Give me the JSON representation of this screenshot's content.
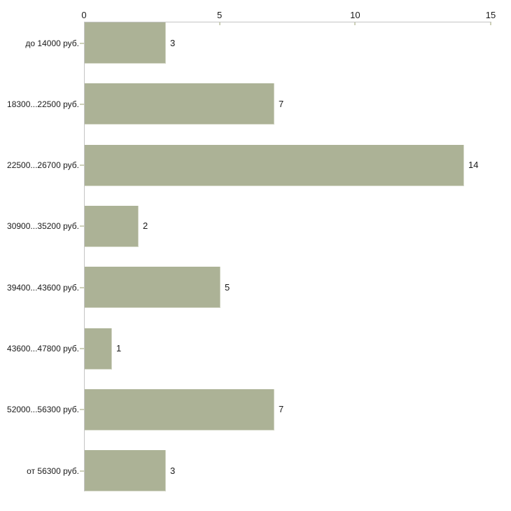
{
  "chart_data": {
    "type": "bar",
    "orientation": "horizontal",
    "categories": [
      "до 14000 руб.",
      "18300...22500 руб.",
      "22500...26700 руб.",
      "30900...35200 руб.",
      "39400...43600 руб.",
      "43600...47800 руб.",
      "52000...56300 руб.",
      "от 56300 руб."
    ],
    "values": [
      3,
      7,
      14,
      2,
      5,
      1,
      7,
      3
    ],
    "x_ticks": [
      0,
      5,
      10,
      15
    ],
    "xlim": [
      0,
      15
    ],
    "grid": false,
    "legend": false,
    "axis_position": "top",
    "colors": {
      "bar_fill": "#acb296",
      "bar_edge": "#d5d8c8",
      "axis_line": "#c4c4c4",
      "tick_mark": "#cdd0b8",
      "text": "#1a1a1a",
      "background": "#ffffff"
    }
  }
}
